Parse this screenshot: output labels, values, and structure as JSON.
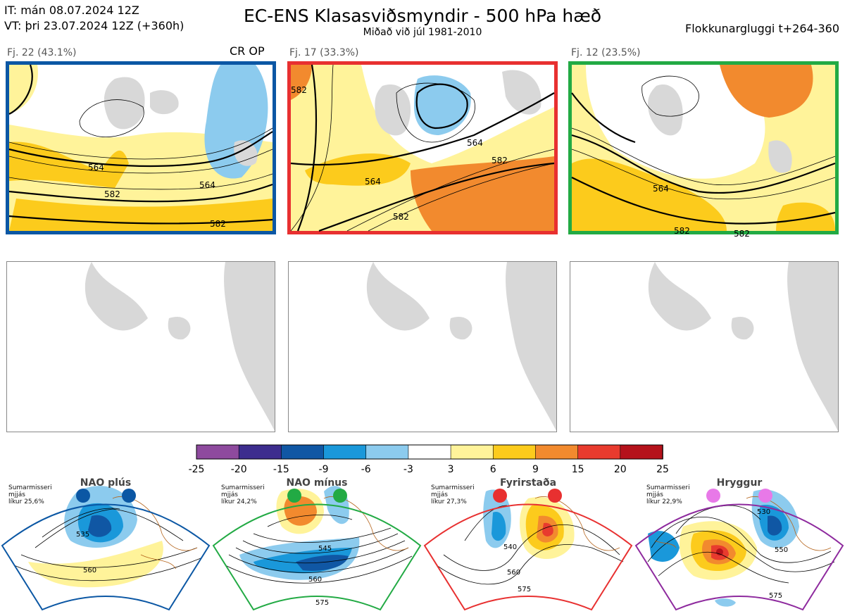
{
  "header": {
    "it_line": "IT: mán 08.07.2024 12Z",
    "vt_line": "VT: þri 23.07.2024 12Z  (+360h)",
    "title": "EC-ENS Klasasviðsmyndir - 500 hPa hæð",
    "subtitle": "Miðað við júl 1981-2010",
    "window": "Flokkunargluggi t+264-360"
  },
  "clusters": [
    {
      "label": "Fj. 22 (43.1%)",
      "tag": "CR OP",
      "border": "#0b57a4",
      "contours": [
        "564",
        "564",
        "582",
        "582"
      ]
    },
    {
      "label": "Fj. 17 (33.3%)",
      "tag": "",
      "border": "#e83030",
      "contours": [
        "564",
        "582",
        "564",
        "582",
        "582"
      ]
    },
    {
      "label": "Fj. 12 (23.5%)",
      "tag": "",
      "border": "#22aa44",
      "contours": [
        "564",
        "582",
        "582"
      ]
    }
  ],
  "colorbar": {
    "ticks": [
      "-25",
      "-20",
      "-15",
      "-9",
      "-6",
      "-3",
      "3",
      "6",
      "9",
      "15",
      "20",
      "25"
    ],
    "colors": [
      "#8e4a9e",
      "#3d2d8e",
      "#1057a4",
      "#1a98da",
      "#8ccbee",
      "#ffffff",
      "#fff39a",
      "#fccb1c",
      "#f28a2e",
      "#e83b2e",
      "#b5121b"
    ]
  },
  "regimes": [
    {
      "name": "NAO plús",
      "note": [
        "Sumarmisseri",
        "mjjás",
        "líkur 25,6%"
      ],
      "dot_color": "#0b57a4",
      "border": "#0b57a4",
      "contours": [
        "535",
        "560"
      ]
    },
    {
      "name": "NAO mínus",
      "note": [
        "Sumarmisseri",
        "mjjás",
        "líkur 24,2%"
      ],
      "dot_color": "#22aa44",
      "border": "#22aa44",
      "contours": [
        "545",
        "560",
        "575"
      ]
    },
    {
      "name": "Fyrirstaða",
      "note": [
        "Sumarmisseri",
        "mjjás",
        "líkur 27,3%"
      ],
      "dot_color": "#e83030",
      "border": "#e83030",
      "contours": [
        "540",
        "560",
        "575"
      ]
    },
    {
      "name": "Hryggur",
      "note": [
        "Sumarmisseri",
        "mjjás",
        "líkur 22,9%"
      ],
      "dot_color": "#e879e8",
      "border": "#8e2a9e",
      "contours": [
        "530",
        "550",
        "575"
      ]
    }
  ]
}
